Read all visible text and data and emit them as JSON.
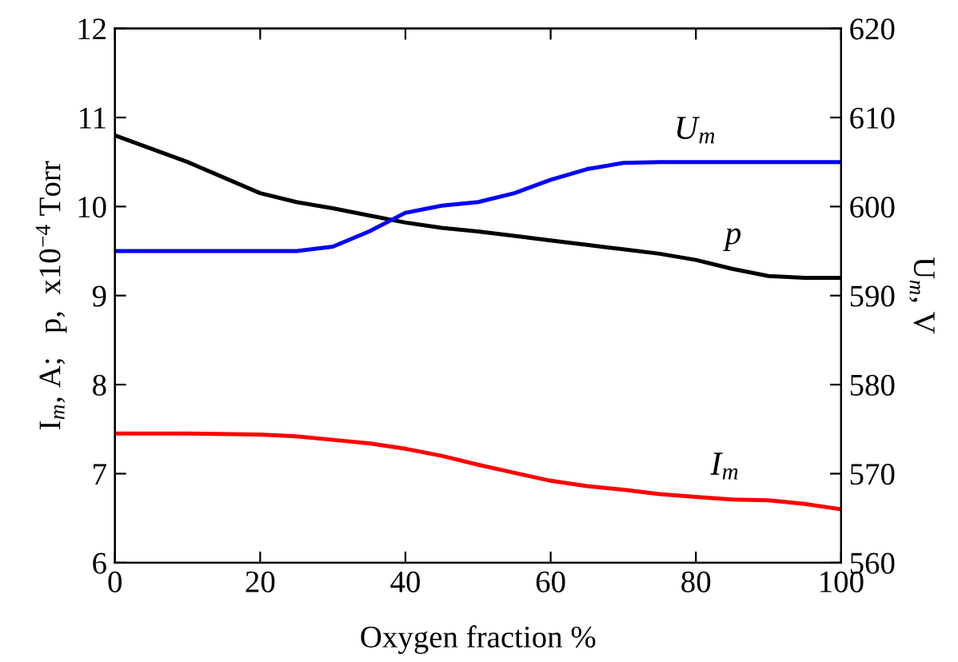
{
  "chart_data": {
    "type": "line",
    "xlabel": "Oxygen fraction %",
    "ylabel": "I$_{m}$, A;   p,  x10$^{−4}$ Torr",
    "y2label": "U$_{m}$, V",
    "x": [
      0,
      10,
      20,
      25,
      30,
      35,
      40,
      45,
      50,
      55,
      60,
      65,
      70,
      75,
      80,
      85,
      90,
      95,
      100
    ],
    "series": [
      {
        "name": "p",
        "color": "#000000",
        "values": [
          10.8,
          10.5,
          10.15,
          10.05,
          9.98,
          9.9,
          9.82,
          9.76,
          9.72,
          9.67,
          9.62,
          9.57,
          9.52,
          9.47,
          9.4,
          9.3,
          9.22,
          9.2,
          9.2
        ]
      },
      {
        "name": "U$_{m}$",
        "color": "#0000ff",
        "axis": "y2",
        "values": [
          595,
          595,
          595,
          595,
          595.5,
          597.2,
          599.3,
          600.1,
          600.5,
          601.5,
          603,
          604.2,
          604.9,
          605,
          605,
          605,
          605,
          605,
          605
        ]
      },
      {
        "name": "I$_{m}$",
        "color": "#ff0000",
        "values": [
          7.45,
          7.45,
          7.44,
          7.42,
          7.38,
          7.34,
          7.28,
          7.2,
          7.1,
          7.01,
          6.92,
          6.86,
          6.82,
          6.77,
          6.74,
          6.71,
          6.7,
          6.66,
          6.6
        ]
      }
    ],
    "xlim": [
      0,
      100
    ],
    "xticks": [
      0,
      20,
      40,
      60,
      80,
      100
    ],
    "ylim": [
      6,
      12
    ],
    "yticks": [
      6,
      7,
      8,
      9,
      10,
      11,
      12
    ],
    "y2lim": [
      560,
      620
    ],
    "y2ticks": [
      560,
      570,
      580,
      590,
      600,
      610,
      620
    ],
    "grid": false,
    "legend": false,
    "marker": "none",
    "line_style": "solid"
  }
}
